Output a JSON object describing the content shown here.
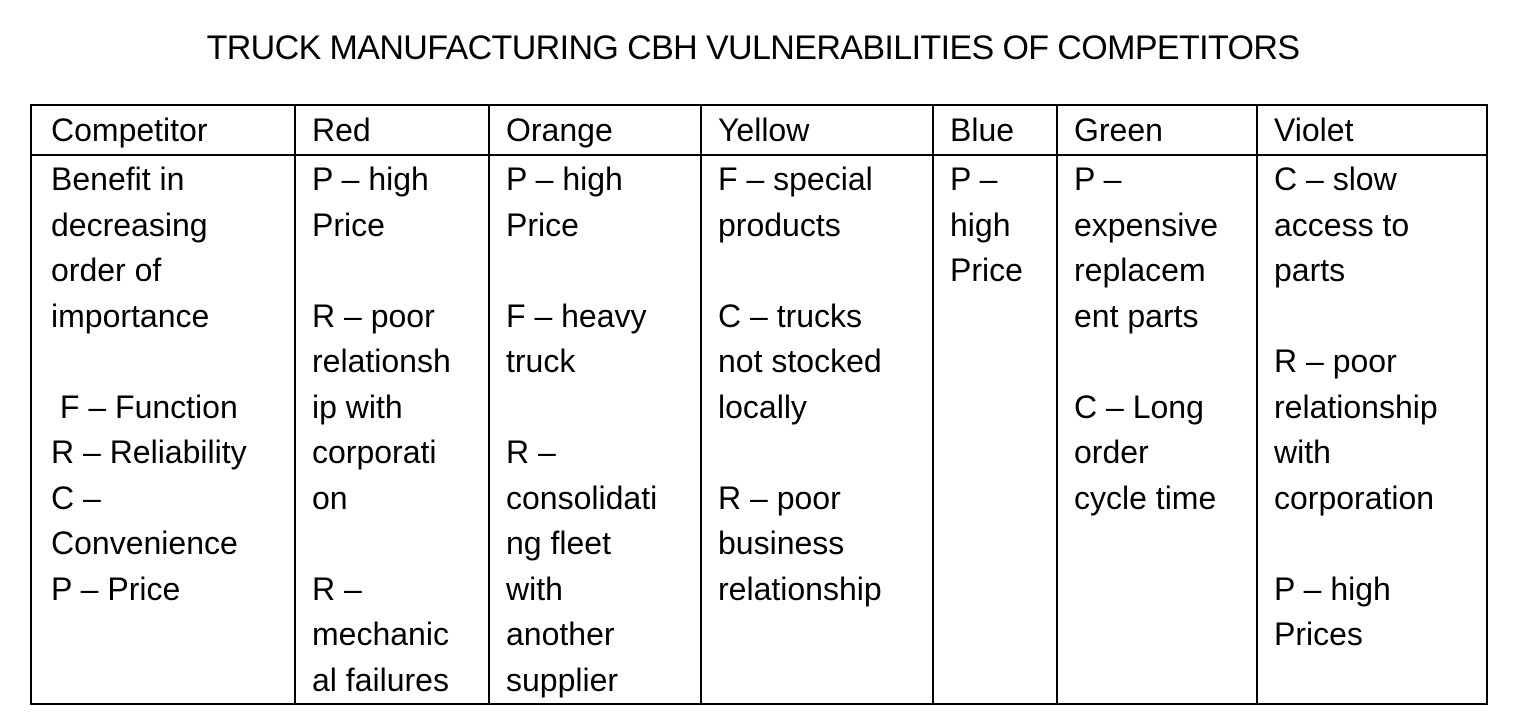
{
  "title": "TRUCK MANUFACTURING CBH VULNERABILITIES OF COMPETITORS",
  "table": {
    "headers": [
      "Competitor",
      "Red",
      "Orange",
      "Yellow",
      "Blue",
      "Green",
      "Violet"
    ],
    "cells": [
      [
        "Benefit in",
        "decreasing",
        "order of",
        "importance",
        "",
        " F – Function",
        "R – Reliability",
        "C –",
        "Convenience",
        "P – Price"
      ],
      [
        "P – high",
        "Price",
        "",
        "R – poor",
        "relationsh",
        "ip with",
        "corporati",
        "on",
        "",
        "R –",
        "mechanic",
        "al failures"
      ],
      [
        "P – high",
        "Price",
        "",
        "F – heavy",
        "truck",
        "",
        "R –",
        "consolidati",
        "ng fleet",
        "with",
        "another",
        "supplier"
      ],
      [
        "F – special",
        "products",
        "",
        "C – trucks",
        "not stocked",
        "locally",
        "",
        "R – poor",
        "business",
        "relationship"
      ],
      [
        "P –",
        "high",
        "Price"
      ],
      [
        "P –",
        "expensive",
        "replacem",
        "ent parts",
        "",
        "C – Long",
        "order",
        "cycle time"
      ],
      [
        "C – slow",
        "access to",
        "parts",
        "",
        "R – poor",
        "relationship",
        "with",
        "corporation",
        "",
        "P – high",
        "Prices"
      ]
    ]
  }
}
